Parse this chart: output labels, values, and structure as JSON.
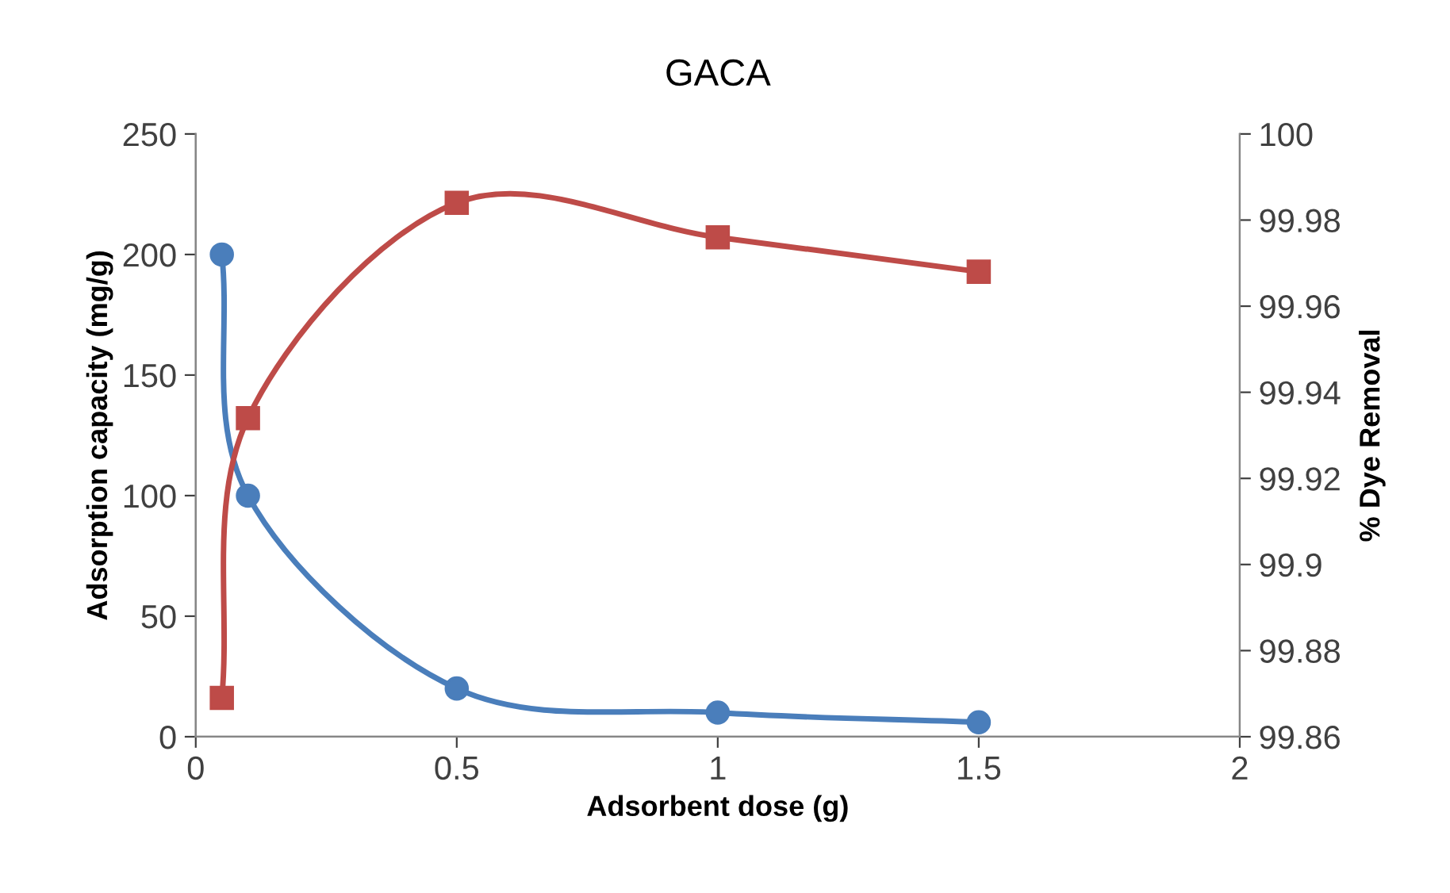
{
  "chart_data": {
    "type": "line",
    "title": "GACA",
    "xlabel": "Adsorbent dose (g)",
    "ylabel": "Adsorption capacity (mg/g)",
    "y2label": "% Dye Removal",
    "xlim": [
      0,
      2
    ],
    "xticks": [
      0,
      0.5,
      1,
      1.5,
      2
    ],
    "ylim": [
      0,
      250
    ],
    "yticks": [
      0,
      50,
      100,
      150,
      200,
      250
    ],
    "y2lim": [
      99.86,
      100
    ],
    "y2ticks": [
      99.86,
      99.88,
      99.9,
      99.92,
      99.94,
      99.96,
      99.98,
      100
    ],
    "grid": false,
    "legend": false,
    "series": [
      {
        "color": "#4a7ebb",
        "marker": "circle",
        "x": [
          0.05,
          0.1,
          0.5,
          1,
          1.5
        ],
        "values": [
          200,
          100,
          20,
          10,
          6
        ]
      },
      {
        "color": "#be4b48",
        "marker": "square",
        "axis": "y2",
        "x": [
          0.05,
          0.1,
          0.5,
          1,
          1.5
        ],
        "values": [
          99.869,
          99.934,
          99.984,
          99.976,
          99.968
        ]
      }
    ]
  }
}
